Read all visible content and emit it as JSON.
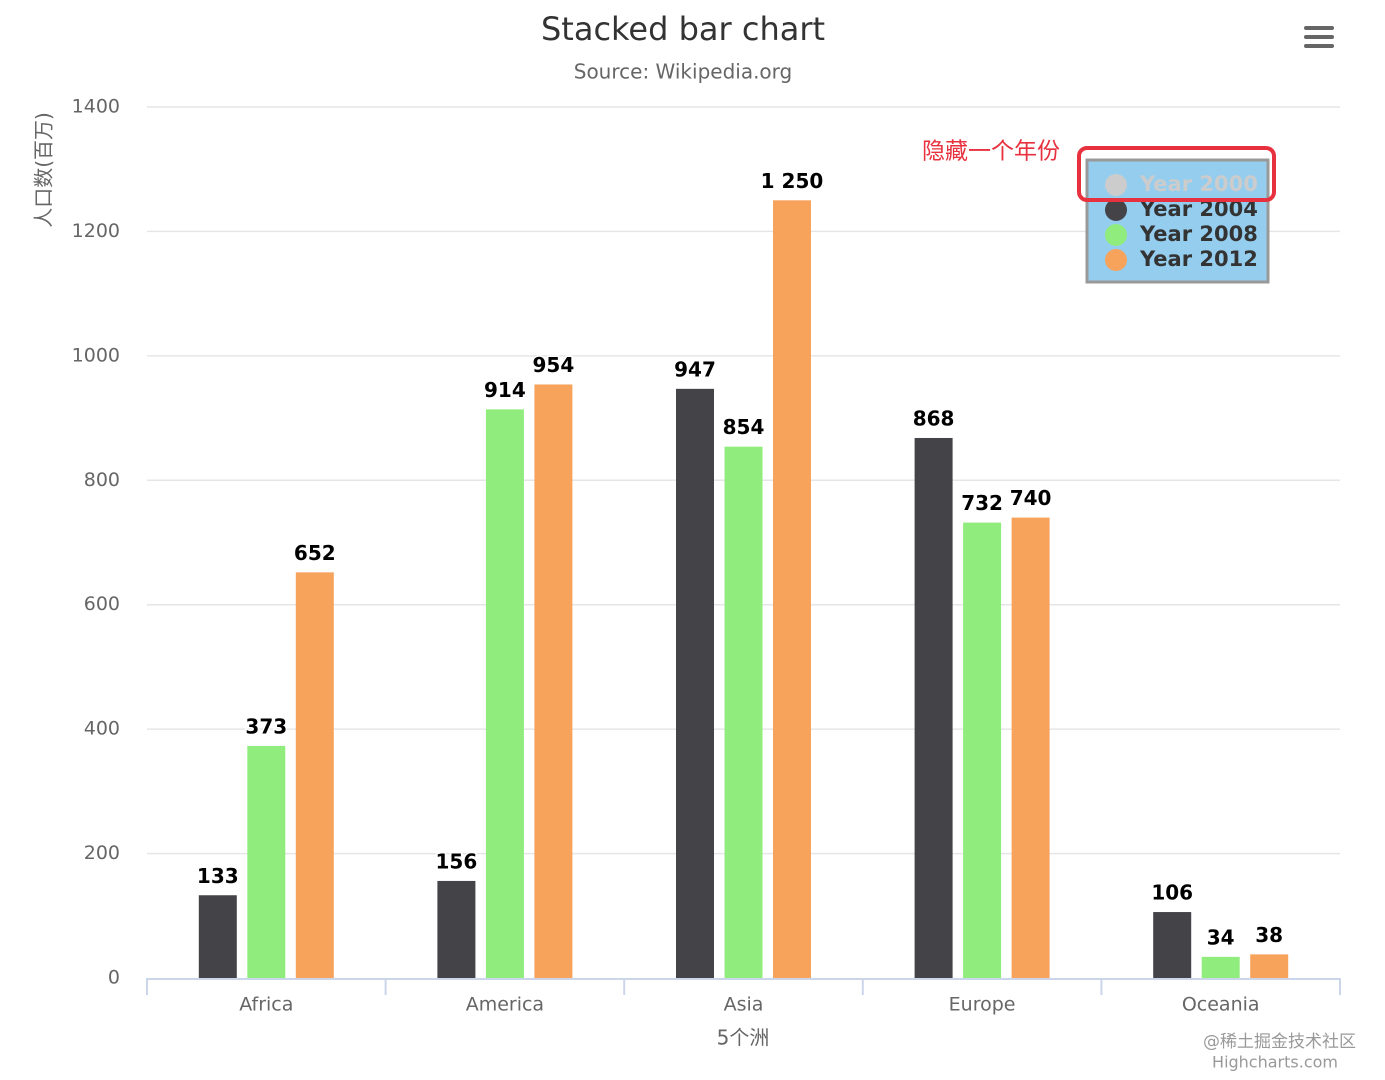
{
  "chart_data": {
    "type": "bar",
    "title": "Stacked bar chart",
    "subtitle": "Source: Wikipedia.org",
    "y_axis_label": "人口数(百万)",
    "x_axis_label": "5个洲",
    "annotation": "隐藏一个年份",
    "watermark": "@稀土掘金技术社区",
    "credits": "Highcharts.com",
    "categories": [
      "Africa",
      "America",
      "Asia",
      "Europe",
      "Oceania"
    ],
    "series": [
      {
        "name": "Year 2000",
        "color": "#7cb5ec",
        "visible": false,
        "values": [
          null,
          null,
          null,
          null,
          null
        ]
      },
      {
        "name": "Year 2004",
        "color": "#434348",
        "visible": true,
        "values": [
          133,
          156,
          947,
          868,
          106
        ]
      },
      {
        "name": "Year 2008",
        "color": "#90ed7d",
        "visible": true,
        "values": [
          373,
          914,
          854,
          732,
          34
        ]
      },
      {
        "name": "Year 2012",
        "color": "#f7a35c",
        "visible": true,
        "values": [
          652,
          954,
          1250,
          740,
          38
        ],
        "value_labels": [
          "652",
          "954",
          "1 250",
          "740",
          "38"
        ]
      }
    ],
    "ylim": [
      0,
      1400
    ],
    "yticks": [
      0,
      200,
      400,
      600,
      800,
      1000,
      1200,
      1400
    ],
    "grid": true,
    "legend_position": "top-right"
  }
}
